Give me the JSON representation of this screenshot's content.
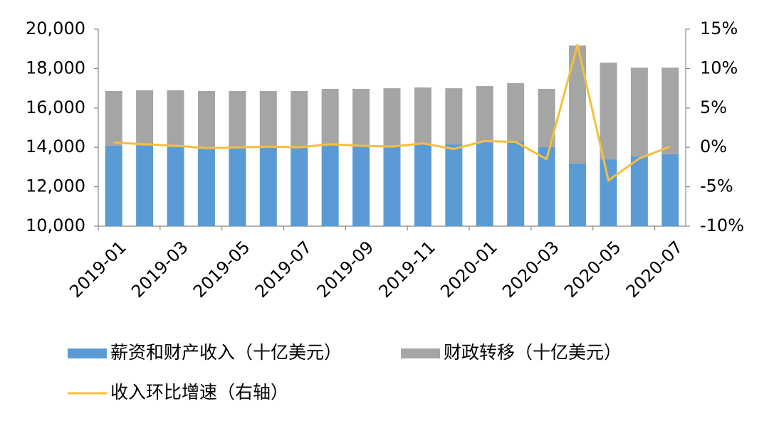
{
  "chart_data": {
    "type": "bar",
    "categories": [
      "2019-01",
      null,
      "2019-03",
      null,
      "2019-05",
      null,
      "2019-07",
      null,
      "2019-09",
      null,
      "2019-11",
      null,
      "2020-01",
      null,
      "2020-03",
      null,
      "2020-05",
      null,
      "2020-07"
    ],
    "series": [
      {
        "name": "薪资和财产收入（十亿美元）",
        "color": "#5b9bd5",
        "values": [
          14080,
          14080,
          14010,
          13940,
          13970,
          13970,
          13970,
          14080,
          14040,
          14040,
          14150,
          14150,
          14300,
          14300,
          14010,
          13180,
          13390,
          13540,
          13650
        ]
      },
      {
        "name": "财政转移（十亿美元）",
        "color": "#a5a5a5",
        "values": [
          2780,
          2820,
          2890,
          2920,
          2890,
          2890,
          2890,
          2890,
          2930,
          2960,
          2890,
          2850,
          2810,
          2960,
          2960,
          5990,
          4910,
          4510,
          4400
        ]
      },
      {
        "name": "收入环比增速（右轴）",
        "color": "#f5bf3c",
        "type": "line",
        "axis": "y2",
        "values": [
          0.6,
          0.4,
          0.2,
          -0.1,
          0,
          0.1,
          0,
          0.4,
          0.2,
          0.1,
          0.5,
          -0.2,
          0.8,
          0.7,
          -1.5,
          13.0,
          -4.2,
          -1.4,
          0.1
        ]
      }
    ],
    "stacked": true,
    "ylim": [
      10000,
      20000
    ],
    "yticks": [
      {
        "value": 10000,
        "label": "10,000"
      },
      {
        "value": 12000,
        "label": "12,000"
      },
      {
        "value": 14000,
        "label": "14,000"
      },
      {
        "value": 16000,
        "label": "16,000"
      },
      {
        "value": 18000,
        "label": "18,000"
      },
      {
        "value": 20000,
        "label": "20,000"
      }
    ],
    "y2lim": [
      -10,
      15
    ],
    "y2ticks": [
      {
        "value": -10,
        "label": "-10%"
      },
      {
        "value": -5,
        "label": "-5%"
      },
      {
        "value": 0,
        "label": "0%"
      },
      {
        "value": 5,
        "label": "5%"
      },
      {
        "value": 10,
        "label": "10%"
      },
      {
        "value": 15,
        "label": "15%"
      }
    ],
    "grid": false,
    "legend": "bottom"
  }
}
